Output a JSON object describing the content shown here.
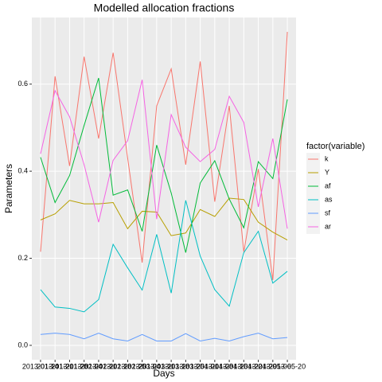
{
  "chart_data": {
    "type": "line",
    "title": "Modelled allocation fractions",
    "x_label": "Days",
    "y_label": "Parameters",
    "legend_title": "factor(variable)",
    "categories": [
      "2013-01-14",
      "2013-01-21",
      "2013-01-28",
      "2013-02-04",
      "2013-02-11",
      "2013-02-18",
      "2013-02-25",
      "2013-03-04",
      "2013-03-11",
      "2013-03-18",
      "2013-03-25",
      "2013-04-01",
      "2013-04-08",
      "2013-04-15",
      "2013-04-22",
      "2013-04-29",
      "2013-05-06",
      "2013-05-20"
    ],
    "series": [
      {
        "name": "k",
        "color": "#F8766D",
        "values": [
          0.215,
          0.618,
          0.412,
          0.663,
          0.475,
          0.672,
          0.43,
          0.19,
          0.55,
          0.635,
          0.415,
          0.652,
          0.33,
          0.55,
          0.215,
          0.405,
          0.15,
          0.72
        ]
      },
      {
        "name": "Y",
        "color": "#B79F00",
        "values": [
          0.288,
          0.302,
          0.333,
          0.325,
          0.325,
          0.328,
          0.268,
          0.308,
          0.306,
          0.252,
          0.258,
          0.312,
          0.296,
          0.338,
          0.335,
          0.283,
          0.26,
          0.242
        ]
      },
      {
        "name": "af",
        "color": "#00BA38",
        "values": [
          0.432,
          0.328,
          0.39,
          0.505,
          0.614,
          0.345,
          0.357,
          0.262,
          0.46,
          0.35,
          0.213,
          0.373,
          0.424,
          0.336,
          0.27,
          0.422,
          0.383,
          0.565
        ]
      },
      {
        "name": "as",
        "color": "#00BFC4",
        "values": [
          0.128,
          0.088,
          0.085,
          0.077,
          0.105,
          0.232,
          0.178,
          0.127,
          0.255,
          0.12,
          0.333,
          0.205,
          0.128,
          0.09,
          0.213,
          0.262,
          0.143,
          0.17
        ]
      },
      {
        "name": "sf",
        "color": "#619CFF",
        "values": [
          0.025,
          0.028,
          0.025,
          0.015,
          0.028,
          0.015,
          0.01,
          0.025,
          0.01,
          0.01,
          0.027,
          0.01,
          0.016,
          0.01,
          0.02,
          0.028,
          0.015,
          0.018
        ]
      },
      {
        "name": "ar",
        "color": "#F564E3",
        "values": [
          0.44,
          0.585,
          0.525,
          0.415,
          0.283,
          0.425,
          0.47,
          0.61,
          0.29,
          0.53,
          0.455,
          0.422,
          0.45,
          0.572,
          0.512,
          0.318,
          0.475,
          0.268
        ]
      }
    ],
    "ylim": [
      -0.033,
      0.753
    ],
    "yticks": [
      {
        "value": 0,
        "label": "0.0"
      },
      0.2,
      0.4,
      0.6
    ],
    "grid": true
  }
}
